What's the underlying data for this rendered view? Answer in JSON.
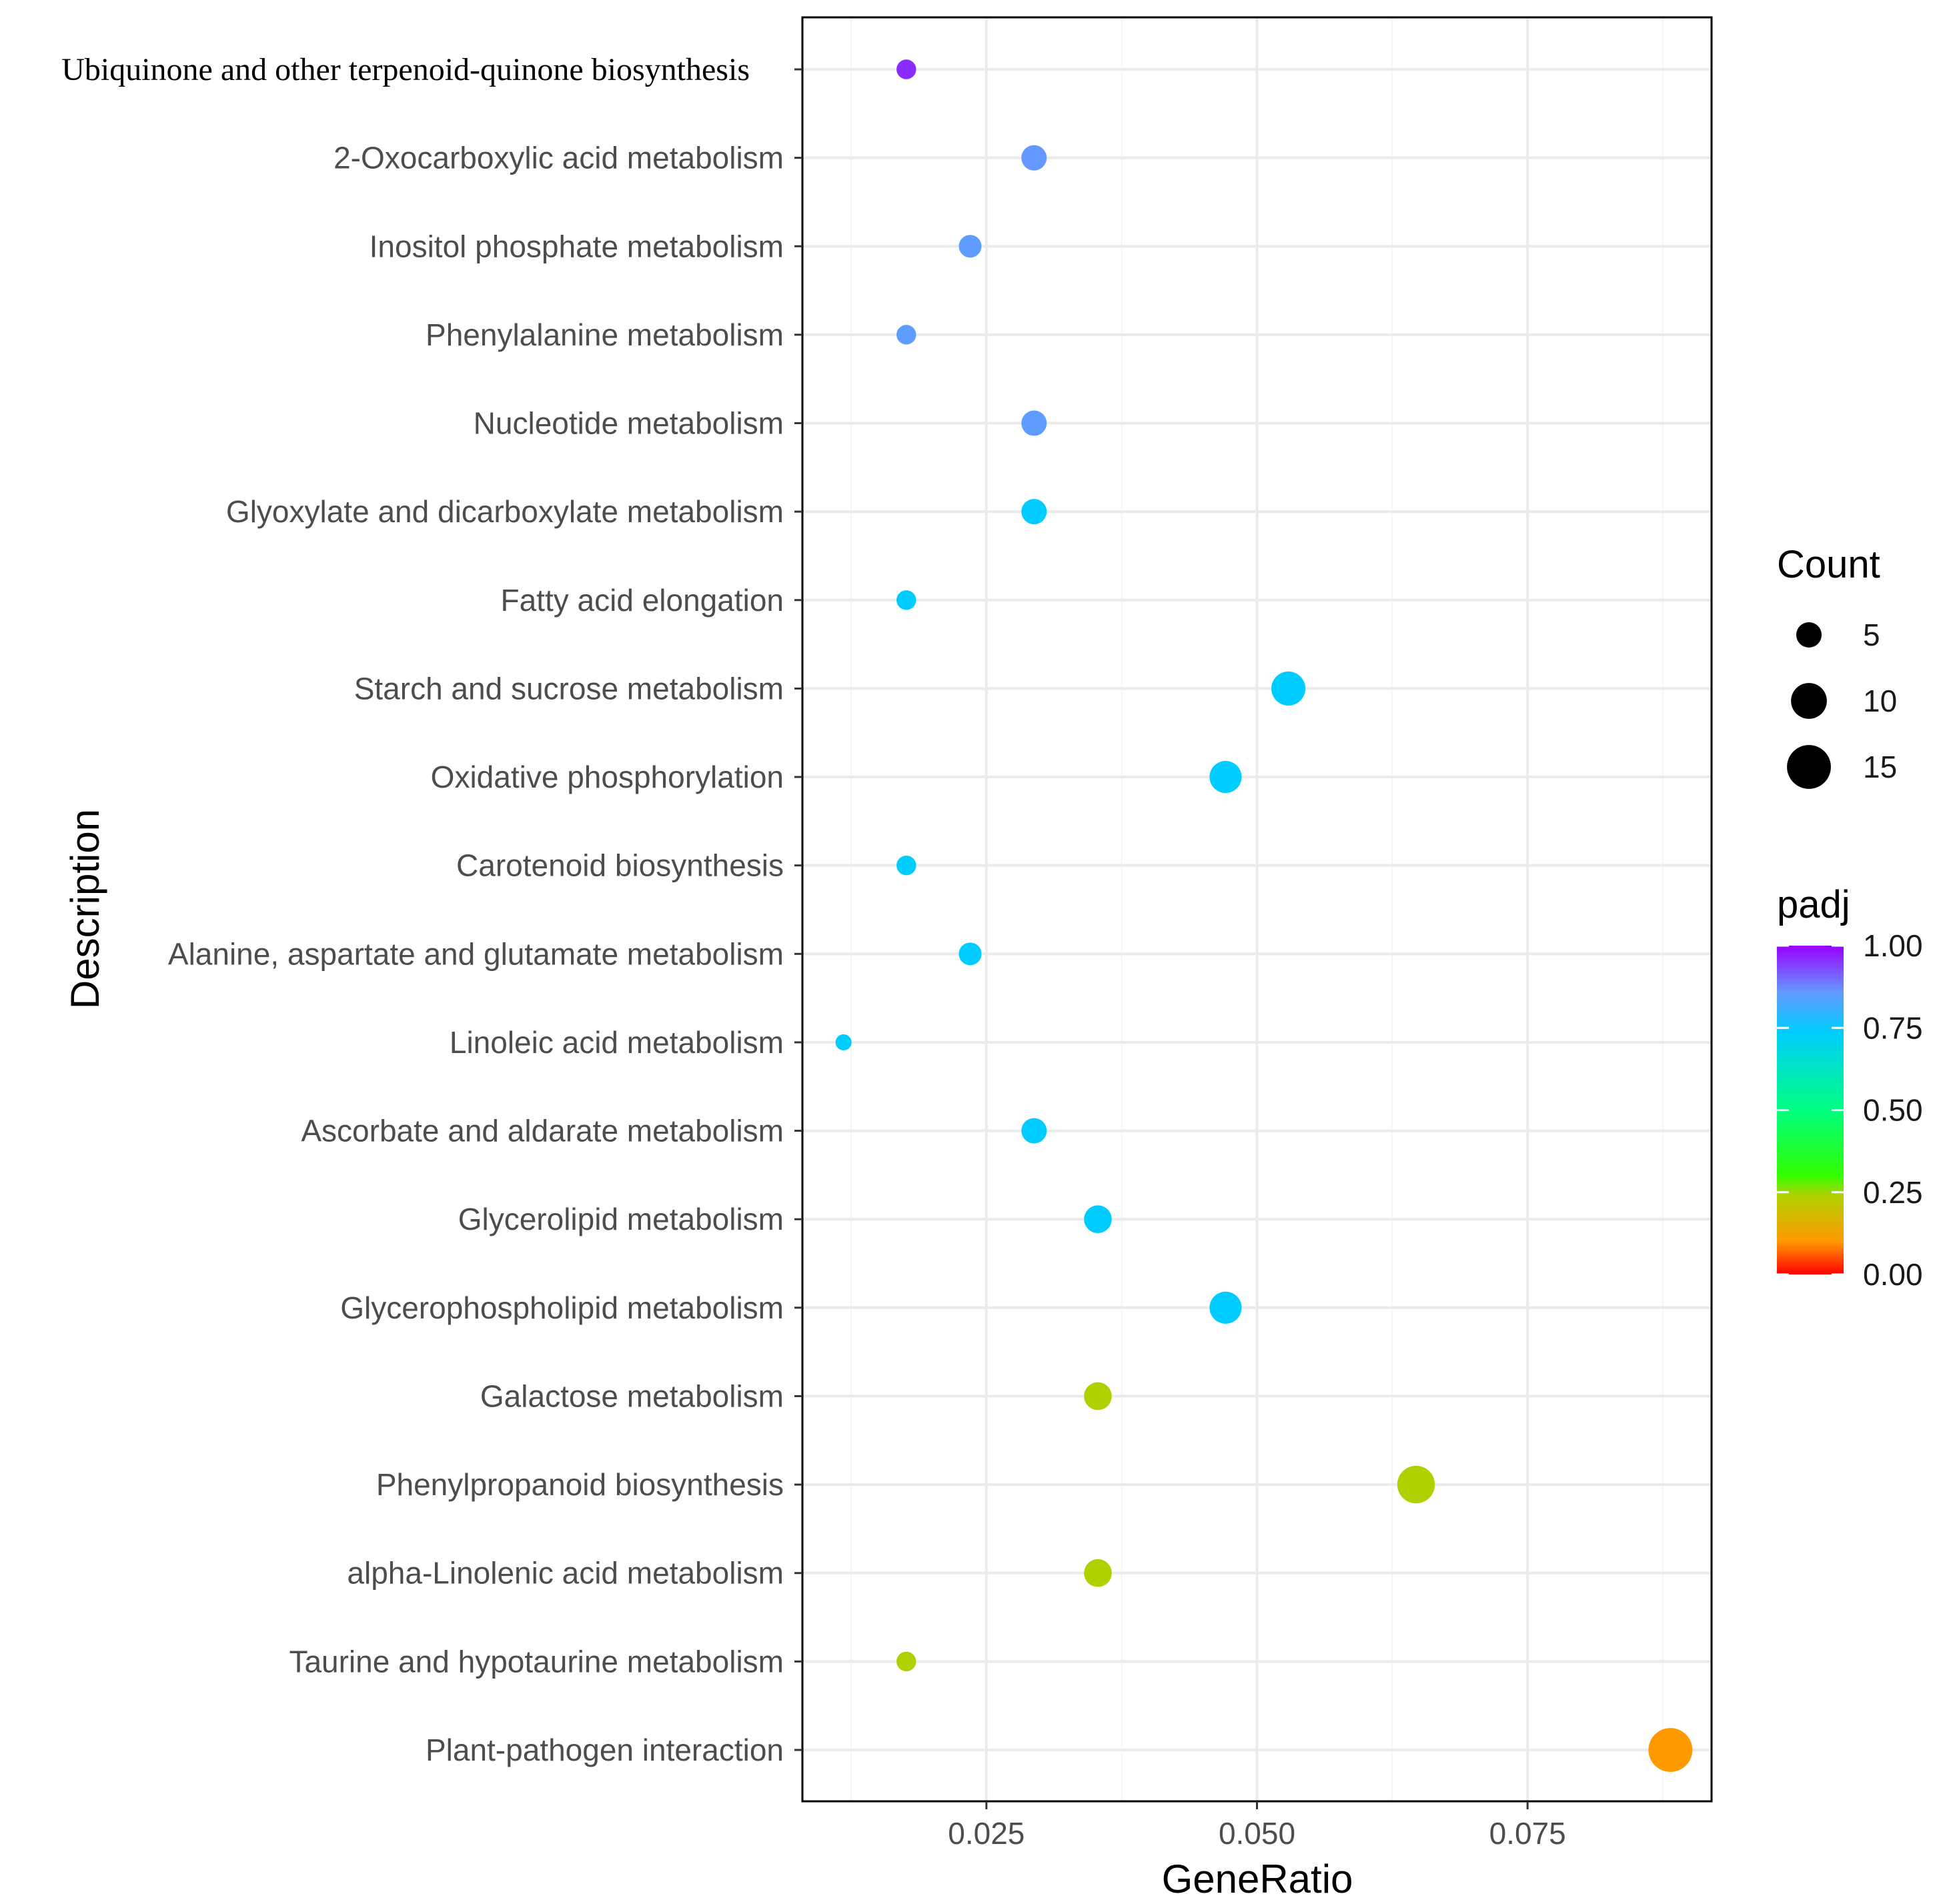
{
  "chart_data": {
    "type": "scatter",
    "title": "",
    "xlabel": "GeneRatio",
    "ylabel": "Description",
    "xlim": [
      0.008,
      0.092
    ],
    "xticks": [
      0.025,
      0.05,
      0.075
    ],
    "xtick_labels": [
      "0.025",
      "0.050",
      "0.075"
    ],
    "grid": true,
    "categories": [
      "Ubiquinone and other terpenoid-quinone biosynthesis",
      "2-Oxocarboxylic acid metabolism",
      "Inositol phosphate metabolism",
      "Phenylalanine metabolism",
      "Nucleotide metabolism",
      "Glyoxylate and dicarboxylate metabolism",
      "Fatty acid elongation",
      "Starch and sucrose metabolism",
      "Oxidative phosphorylation",
      "Carotenoid biosynthesis",
      "Alanine, aspartate and glutamate metabolism",
      "Linoleic acid metabolism",
      "Ascorbate and aldarate metabolism",
      "Glycerolipid metabolism",
      "Glycerophospholipid metabolism",
      "Galactose metabolism",
      "Phenylpropanoid biosynthesis",
      "alpha-Linolenic acid metabolism",
      "Taurine and hypotaurine metabolism",
      "Plant-pathogen interaction"
    ],
    "points": [
      {
        "description": "Ubiquinone and other terpenoid-quinone biosynthesis",
        "gene_ratio": 0.0176,
        "count": 3,
        "padj": 0.96
      },
      {
        "description": "2-Oxocarboxylic acid metabolism",
        "gene_ratio": 0.0294,
        "count": 5,
        "padj": 0.86
      },
      {
        "description": "Inositol phosphate metabolism",
        "gene_ratio": 0.0235,
        "count": 4,
        "padj": 0.85
      },
      {
        "description": "Phenylalanine metabolism",
        "gene_ratio": 0.0176,
        "count": 3,
        "padj": 0.85
      },
      {
        "description": "Nucleotide metabolism",
        "gene_ratio": 0.0294,
        "count": 5,
        "padj": 0.85
      },
      {
        "description": "Glyoxylate and dicarboxylate metabolism",
        "gene_ratio": 0.0294,
        "count": 5,
        "padj": 0.74
      },
      {
        "description": "Fatty acid elongation",
        "gene_ratio": 0.0176,
        "count": 3,
        "padj": 0.74
      },
      {
        "description": "Starch and sucrose metabolism",
        "gene_ratio": 0.0529,
        "count": 9,
        "padj": 0.74
      },
      {
        "description": "Oxidative phosphorylation",
        "gene_ratio": 0.0471,
        "count": 8,
        "padj": 0.74
      },
      {
        "description": "Carotenoid biosynthesis",
        "gene_ratio": 0.0176,
        "count": 3,
        "padj": 0.74
      },
      {
        "description": "Alanine, aspartate and glutamate metabolism",
        "gene_ratio": 0.0235,
        "count": 4,
        "padj": 0.74
      },
      {
        "description": "Linoleic acid metabolism",
        "gene_ratio": 0.0118,
        "count": 2,
        "padj": 0.74
      },
      {
        "description": "Ascorbate and aldarate metabolism",
        "gene_ratio": 0.0294,
        "count": 5,
        "padj": 0.74
      },
      {
        "description": "Glycerolipid metabolism",
        "gene_ratio": 0.0353,
        "count": 6,
        "padj": 0.74
      },
      {
        "description": "Glycerophospholipid metabolism",
        "gene_ratio": 0.0471,
        "count": 8,
        "padj": 0.74
      },
      {
        "description": "Galactose metabolism",
        "gene_ratio": 0.0353,
        "count": 6,
        "padj": 0.24
      },
      {
        "description": "Phenylpropanoid biosynthesis",
        "gene_ratio": 0.0647,
        "count": 11,
        "padj": 0.24
      },
      {
        "description": "alpha-Linolenic acid metabolism",
        "gene_ratio": 0.0353,
        "count": 6,
        "padj": 0.24
      },
      {
        "description": "Taurine and hypotaurine metabolism",
        "gene_ratio": 0.0176,
        "count": 3,
        "padj": 0.24
      },
      {
        "description": "Plant-pathogen interaction",
        "gene_ratio": 0.0882,
        "count": 15,
        "padj": 0.1
      }
    ],
    "size_legend": {
      "title": "Count",
      "values": [
        5,
        10,
        15
      ],
      "labels": [
        "5",
        "10",
        "15"
      ]
    },
    "color_legend": {
      "title": "padj",
      "limits": [
        0,
        1
      ],
      "ticks": [
        1.0,
        0.75,
        0.5,
        0.25,
        0.0
      ],
      "tick_labels": [
        "1.00",
        "0.75",
        "0.50",
        "0.25",
        "0.00"
      ],
      "stops": [
        {
          "value": 0.0,
          "color": "#ff0000"
        },
        {
          "value": 0.1,
          "color": "#ff9900"
        },
        {
          "value": 0.24,
          "color": "#b0d100"
        },
        {
          "value": 0.3,
          "color": "#33ff00"
        },
        {
          "value": 0.5,
          "color": "#00ff80"
        },
        {
          "value": 0.74,
          "color": "#00ccff"
        },
        {
          "value": 0.86,
          "color": "#6699ff"
        },
        {
          "value": 1.0,
          "color": "#9900ff"
        }
      ]
    }
  },
  "colors": {
    "panel_border": "#000000",
    "grid_major": "#ebebeb",
    "grid_minor": "#f5f5f5",
    "tick": "#333333",
    "point_legend": "#000000"
  }
}
